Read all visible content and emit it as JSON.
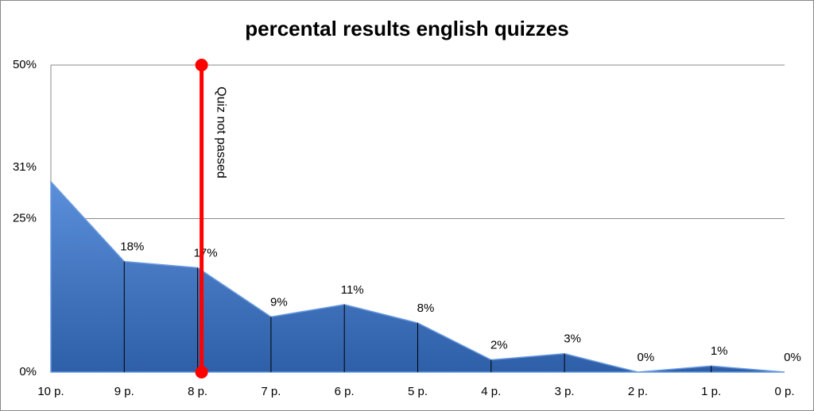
{
  "chart_data": {
    "type": "area",
    "title": "percental results english quizzes",
    "categories": [
      "10 p.",
      "9 p.",
      "8 p.",
      "7 p.",
      "6 p.",
      "5 p.",
      "4 p.",
      "3 p.",
      "2 p.",
      "1 p.",
      "0 p."
    ],
    "values": [
      31,
      18,
      17,
      9,
      11,
      8,
      2,
      3,
      0,
      1,
      0
    ],
    "value_labels": [
      "31%",
      "18%",
      "17%",
      "9%",
      "11%",
      "8%",
      "2%",
      "3%",
      "0%",
      "1%",
      "0%"
    ],
    "color": "#3f74c4",
    "ylim": [
      0,
      50
    ],
    "yticks": [
      {
        "value": 0,
        "label": "0%"
      },
      {
        "value": 25,
        "label": "25%"
      },
      {
        "value": 50,
        "label": "50%"
      }
    ],
    "grid": true,
    "annotation": {
      "text": "Quiz  not passed",
      "category": "8 p.",
      "color": "#ff0000"
    }
  }
}
